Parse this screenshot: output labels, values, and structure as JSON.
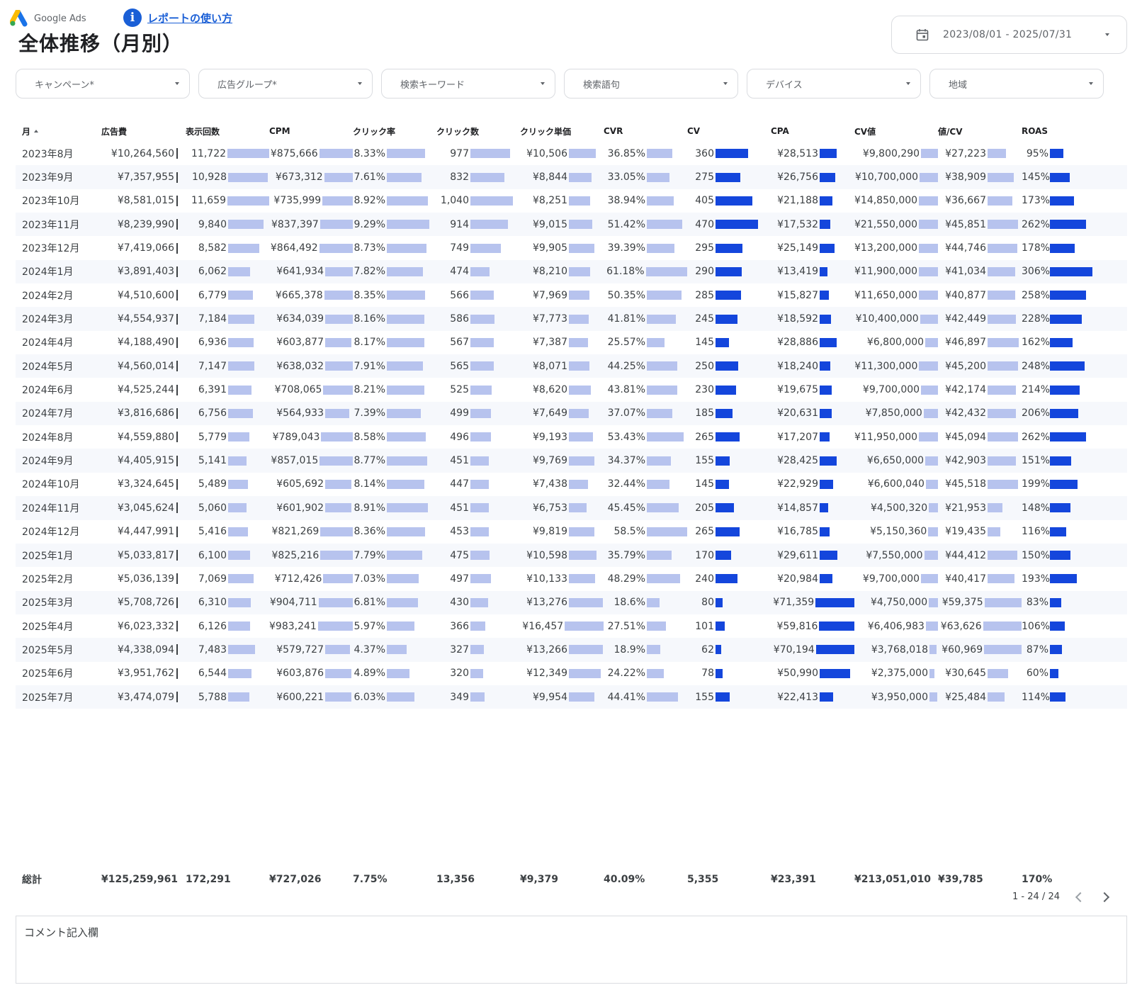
{
  "brand": {
    "name": "Google Ads"
  },
  "help": {
    "label": "レポートの使い方"
  },
  "page": {
    "title": "全体推移（月別）"
  },
  "date_range": {
    "value": "2023/08/01 - 2025/07/31"
  },
  "filters": [
    "キャンペーン*",
    "広告グループ*",
    "検索キーワード",
    "検索語句",
    "デバイス",
    "地域"
  ],
  "colors": {
    "bar_light": "#b7c3ee",
    "bar_dark": "#1446dc",
    "link": "#1a5fd6"
  },
  "table": {
    "columns": [
      "月",
      "広告費",
      "表示回数",
      "CPM",
      "クリック率",
      "クリック数",
      "クリック単価",
      "CVR",
      "CV",
      "CPA",
      "CV値",
      "値/CV",
      "ROAS"
    ],
    "sort": {
      "column": "月",
      "direction": "ascending"
    },
    "rows": [
      [
        "2023年8月",
        "¥10,264,560",
        "11,722",
        "¥875,666",
        "8.33%",
        "977",
        "¥10,506",
        "36.85%",
        "360",
        "¥28,513",
        "¥9,800,290",
        "¥27,223",
        "95%"
      ],
      [
        "2023年9月",
        "¥7,357,955",
        "10,928",
        "¥673,312",
        "7.61%",
        "832",
        "¥8,844",
        "33.05%",
        "275",
        "¥26,756",
        "¥10,700,000",
        "¥38,909",
        "145%"
      ],
      [
        "2023年10月",
        "¥8,581,015",
        "11,659",
        "¥735,999",
        "8.92%",
        "1,040",
        "¥8,251",
        "38.94%",
        "405",
        "¥21,188",
        "¥14,850,000",
        "¥36,667",
        "173%"
      ],
      [
        "2023年11月",
        "¥8,239,990",
        "9,840",
        "¥837,397",
        "9.29%",
        "914",
        "¥9,015",
        "51.42%",
        "470",
        "¥17,532",
        "¥21,550,000",
        "¥45,851",
        "262%"
      ],
      [
        "2023年12月",
        "¥7,419,066",
        "8,582",
        "¥864,492",
        "8.73%",
        "749",
        "¥9,905",
        "39.39%",
        "295",
        "¥25,149",
        "¥13,200,000",
        "¥44,746",
        "178%"
      ],
      [
        "2024年1月",
        "¥3,891,403",
        "6,062",
        "¥641,934",
        "7.82%",
        "474",
        "¥8,210",
        "61.18%",
        "290",
        "¥13,419",
        "¥11,900,000",
        "¥41,034",
        "306%"
      ],
      [
        "2024年2月",
        "¥4,510,600",
        "6,779",
        "¥665,378",
        "8.35%",
        "566",
        "¥7,969",
        "50.35%",
        "285",
        "¥15,827",
        "¥11,650,000",
        "¥40,877",
        "258%"
      ],
      [
        "2024年3月",
        "¥4,554,937",
        "7,184",
        "¥634,039",
        "8.16%",
        "586",
        "¥7,773",
        "41.81%",
        "245",
        "¥18,592",
        "¥10,400,000",
        "¥42,449",
        "228%"
      ],
      [
        "2024年4月",
        "¥4,188,490",
        "6,936",
        "¥603,877",
        "8.17%",
        "567",
        "¥7,387",
        "25.57%",
        "145",
        "¥28,886",
        "¥6,800,000",
        "¥46,897",
        "162%"
      ],
      [
        "2024年5月",
        "¥4,560,014",
        "7,147",
        "¥638,032",
        "7.91%",
        "565",
        "¥8,071",
        "44.25%",
        "250",
        "¥18,240",
        "¥11,300,000",
        "¥45,200",
        "248%"
      ],
      [
        "2024年6月",
        "¥4,525,244",
        "6,391",
        "¥708,065",
        "8.21%",
        "525",
        "¥8,620",
        "43.81%",
        "230",
        "¥19,675",
        "¥9,700,000",
        "¥42,174",
        "214%"
      ],
      [
        "2024年7月",
        "¥3,816,686",
        "6,756",
        "¥564,933",
        "7.39%",
        "499",
        "¥7,649",
        "37.07%",
        "185",
        "¥20,631",
        "¥7,850,000",
        "¥42,432",
        "206%"
      ],
      [
        "2024年8月",
        "¥4,559,880",
        "5,779",
        "¥789,043",
        "8.58%",
        "496",
        "¥9,193",
        "53.43%",
        "265",
        "¥17,207",
        "¥11,950,000",
        "¥45,094",
        "262%"
      ],
      [
        "2024年9月",
        "¥4,405,915",
        "5,141",
        "¥857,015",
        "8.77%",
        "451",
        "¥9,769",
        "34.37%",
        "155",
        "¥28,425",
        "¥6,650,000",
        "¥42,903",
        "151%"
      ],
      [
        "2024年10月",
        "¥3,324,645",
        "5,489",
        "¥605,692",
        "8.14%",
        "447",
        "¥7,438",
        "32.44%",
        "145",
        "¥22,929",
        "¥6,600,040",
        "¥45,518",
        "199%"
      ],
      [
        "2024年11月",
        "¥3,045,624",
        "5,060",
        "¥601,902",
        "8.91%",
        "451",
        "¥6,753",
        "45.45%",
        "205",
        "¥14,857",
        "¥4,500,320",
        "¥21,953",
        "148%"
      ],
      [
        "2024年12月",
        "¥4,447,991",
        "5,416",
        "¥821,269",
        "8.36%",
        "453",
        "¥9,819",
        "58.5%",
        "265",
        "¥16,785",
        "¥5,150,360",
        "¥19,435",
        "116%"
      ],
      [
        "2025年1月",
        "¥5,033,817",
        "6,100",
        "¥825,216",
        "7.79%",
        "475",
        "¥10,598",
        "35.79%",
        "170",
        "¥29,611",
        "¥7,550,000",
        "¥44,412",
        "150%"
      ],
      [
        "2025年2月",
        "¥5,036,139",
        "7,069",
        "¥712,426",
        "7.03%",
        "497",
        "¥10,133",
        "48.29%",
        "240",
        "¥20,984",
        "¥9,700,000",
        "¥40,417",
        "193%"
      ],
      [
        "2025年3月",
        "¥5,708,726",
        "6,310",
        "¥904,711",
        "6.81%",
        "430",
        "¥13,276",
        "18.6%",
        "80",
        "¥71,359",
        "¥4,750,000",
        "¥59,375",
        "83%"
      ],
      [
        "2025年4月",
        "¥6,023,332",
        "6,126",
        "¥983,241",
        "5.97%",
        "366",
        "¥16,457",
        "27.51%",
        "101",
        "¥59,816",
        "¥6,406,983",
        "¥63,626",
        "106%"
      ],
      [
        "2025年5月",
        "¥4,338,094",
        "7,483",
        "¥579,727",
        "4.37%",
        "327",
        "¥13,266",
        "18.9%",
        "62",
        "¥70,194",
        "¥3,768,018",
        "¥60,969",
        "87%"
      ],
      [
        "2025年6月",
        "¥3,951,762",
        "6,544",
        "¥603,876",
        "4.89%",
        "320",
        "¥12,349",
        "24.22%",
        "78",
        "¥50,990",
        "¥2,375,000",
        "¥30,645",
        "60%"
      ],
      [
        "2025年7月",
        "¥3,474,079",
        "5,788",
        "¥600,221",
        "6.03%",
        "349",
        "¥9,954",
        "44.41%",
        "155",
        "¥22,413",
        "¥3,950,000",
        "¥25,484",
        "114%"
      ]
    ],
    "totals": [
      "総計",
      "¥125,259,961",
      "172,291",
      "¥727,026",
      "7.75%",
      "13,356",
      "¥9,379",
      "40.09%",
      "5,355",
      "¥23,391",
      "¥213,051,010",
      "¥39,785",
      "170%"
    ]
  },
  "pagination": {
    "label": "1 - 24 / 24"
  },
  "comment": {
    "label": "コメント記入欄"
  }
}
